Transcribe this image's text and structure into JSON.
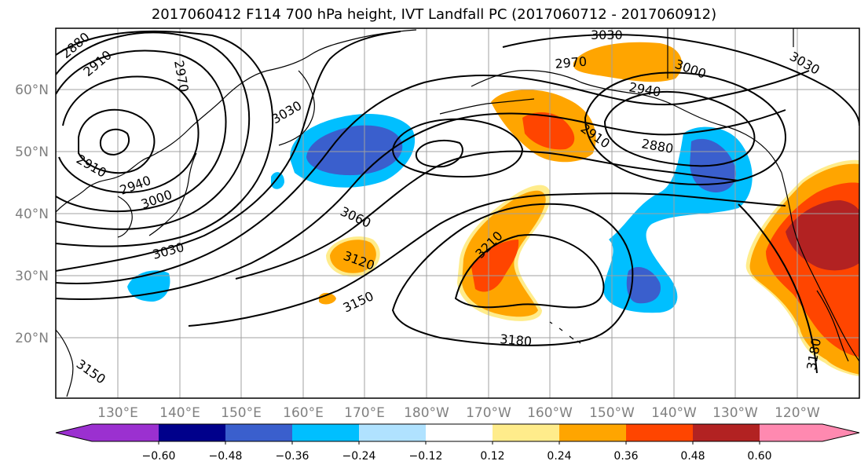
{
  "title": "2017060412 F114 700 hPa height, IVT Landfall PC (2017060712 - 2017060912)",
  "map": {
    "lat_labels": [
      "60°N",
      "50°N",
      "40°N",
      "30°N",
      "20°N"
    ],
    "lon_labels": [
      "130°E",
      "140°E",
      "150°E",
      "160°E",
      "170°E",
      "180°W",
      "170°W",
      "160°W",
      "150°W",
      "140°W",
      "130°W",
      "120°W"
    ],
    "contour_labels": [
      "2880",
      "2910",
      "2970",
      "3030",
      "2910",
      "2940",
      "3000",
      "3030",
      "3060",
      "3120",
      "3150",
      "3210",
      "3180",
      "3030",
      "2970",
      "3000",
      "2940",
      "2910",
      "2880",
      "3030",
      "3180",
      "3150"
    ]
  },
  "colorbar": {
    "ticks": [
      "−0.60",
      "−0.48",
      "−0.36",
      "−0.24",
      "−0.12",
      "0.12",
      "0.24",
      "0.36",
      "0.48",
      "0.60"
    ],
    "colors": [
      "#9b30d0",
      "#00008b",
      "#3a5fcd",
      "#00bfff",
      "#b0e2ff",
      "#ffffff",
      "#ffec8b",
      "#ffa500",
      "#ff4500",
      "#b22222",
      "#ff89b0"
    ]
  },
  "colors": {
    "strong_negative": "#3a5fcd",
    "negative": "#00bfff",
    "weak_positive": "#ffec8b",
    "positive": "#ffa500",
    "strong_positive": "#ff4500",
    "very_strong_positive": "#b22222"
  }
}
